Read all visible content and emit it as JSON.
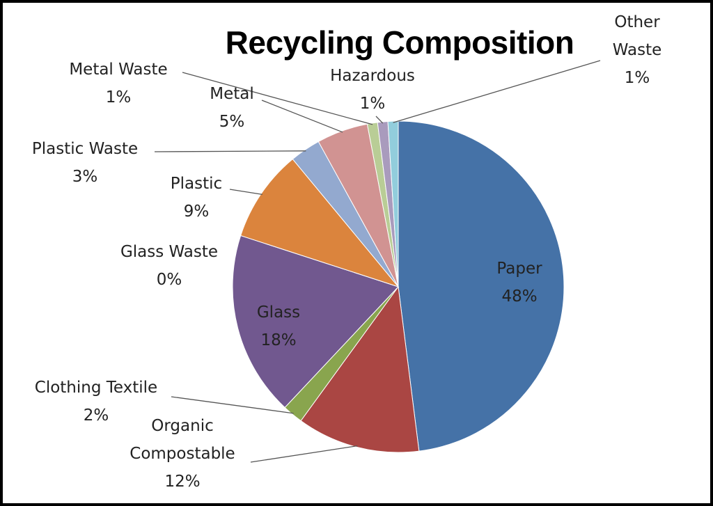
{
  "chart_data": {
    "type": "pie",
    "title": "Recycling Composition",
    "categories": [
      "Paper",
      "Organic Compostable",
      "Clothing Textile",
      "Glass",
      "Glass Waste",
      "Plastic",
      "Plastic Waste",
      "Metal",
      "Metal Waste",
      "Hazardous",
      "Other Waste"
    ],
    "values": [
      48,
      12,
      2,
      18,
      0,
      9,
      3,
      5,
      1,
      1,
      1
    ],
    "value_labels": [
      "48%",
      "12%",
      "2%",
      "18%",
      "0%",
      "9%",
      "3%",
      "5%",
      "1%",
      "1%",
      "1%"
    ],
    "colors": [
      "#4572a7",
      "#aa4643",
      "#89a54e",
      "#71588f",
      "#4198af",
      "#db843d",
      "#93a9cf",
      "#d19392",
      "#b9cd96",
      "#a99bbd",
      "#92cddc"
    ]
  }
}
